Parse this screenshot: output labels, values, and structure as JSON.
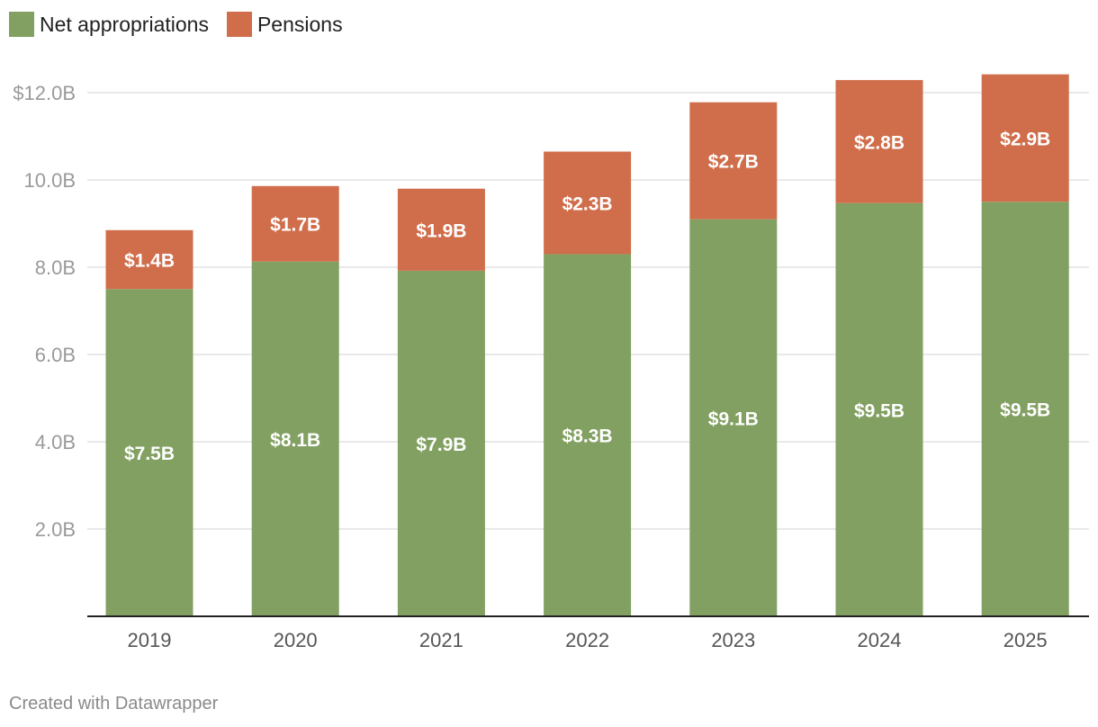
{
  "legend": {
    "items": [
      {
        "label": "Net appropriations",
        "color": "#82a062"
      },
      {
        "label": "Pensions",
        "color": "#d06e4c"
      }
    ]
  },
  "footer": {
    "credit": "Created with Datawrapper"
  },
  "chart_data": {
    "type": "bar",
    "stacked": true,
    "categories": [
      "2019",
      "2020",
      "2021",
      "2022",
      "2023",
      "2024",
      "2025"
    ],
    "series": [
      {
        "name": "Net appropriations",
        "color": "#82a062",
        "values": [
          7.5,
          8.13,
          7.92,
          8.3,
          9.1,
          9.47,
          9.5
        ],
        "labels": [
          "$7.5B",
          "$8.1B",
          "$7.9B",
          "$8.3B",
          "$9.1B",
          "$9.5B",
          "$9.5B"
        ]
      },
      {
        "name": "Pensions",
        "color": "#d06e4c",
        "values": [
          1.35,
          1.73,
          1.88,
          2.35,
          2.68,
          2.82,
          2.92
        ],
        "labels": [
          "$1.4B",
          "$1.7B",
          "$1.9B",
          "$2.3B",
          "$2.7B",
          "$2.8B",
          "$2.9B"
        ]
      }
    ],
    "y_ticks": [
      {
        "value": 2,
        "label": "2.0B"
      },
      {
        "value": 4,
        "label": "4.0B"
      },
      {
        "value": 6,
        "label": "6.0B"
      },
      {
        "value": 8,
        "label": "8.0B"
      },
      {
        "value": 10,
        "label": "10.0B"
      },
      {
        "value": 12,
        "label": "$12.0B"
      }
    ],
    "ylim": [
      0,
      12
    ],
    "grid": true,
    "legend_position": "top-left",
    "title": "",
    "xlabel": "",
    "ylabel": ""
  }
}
